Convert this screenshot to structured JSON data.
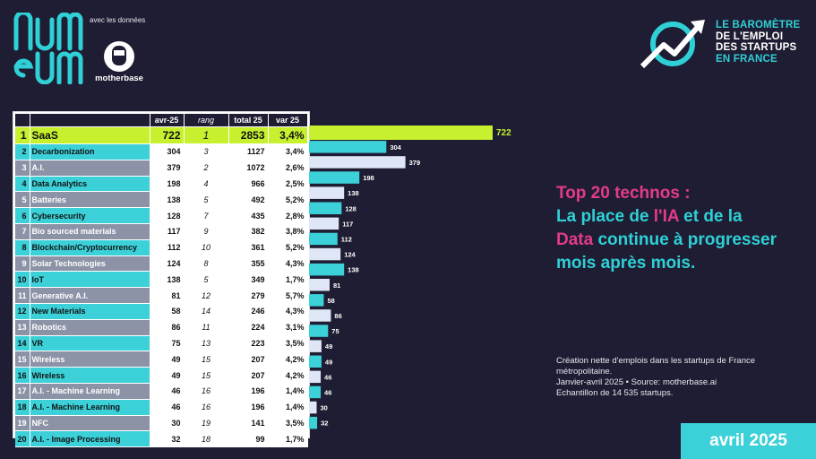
{
  "header": {
    "brand": "num eum",
    "avec": "avec les données",
    "partner": "motherbase",
    "barometre": [
      "LE BAROMÈTRE",
      "DE L'EMPLOI",
      "DES STARTUPS",
      "EN FRANCE"
    ]
  },
  "table": {
    "headers": {
      "col1": "avr-25",
      "col2": "rang",
      "col3": "total 25",
      "col4": "var 25"
    }
  },
  "chart_data": {
    "type": "bar",
    "categories": [
      "SaaS",
      "Decarbonization",
      "A.I.",
      "Data Analytics",
      "Batteries",
      "Cybersecurity",
      "Bio sourced materials",
      "Blockchain/Cryptocurrency",
      "Solar Technologies",
      "IoT",
      "Generative A.I.",
      "New Materials",
      "Robotics",
      "VR",
      "Wireless",
      "Wireless",
      "A.I. - Machine Learning",
      "A.I. - Machine Learning",
      "NFC",
      "A.I. - Image Processing"
    ],
    "rows": [
      {
        "n": "1",
        "name": "SaaS",
        "avr": "722",
        "rang": "1",
        "total": "2853",
        "var": "3,4%",
        "value": 722
      },
      {
        "n": "2",
        "name": "Decarbonization",
        "avr": "304",
        "rang": "3",
        "total": "1127",
        "var": "3,4%",
        "value": 304
      },
      {
        "n": "3",
        "name": "A.I.",
        "avr": "379",
        "rang": "2",
        "total": "1072",
        "var": "2,6%",
        "value": 379
      },
      {
        "n": "4",
        "name": "Data Analytics",
        "avr": "198",
        "rang": "4",
        "total": "966",
        "var": "2,5%",
        "value": 198
      },
      {
        "n": "5",
        "name": "Batteries",
        "avr": "138",
        "rang": "5",
        "total": "492",
        "var": "5,2%",
        "value": 138
      },
      {
        "n": "6",
        "name": "Cybersecurity",
        "avr": "128",
        "rang": "7",
        "total": "435",
        "var": "2,8%",
        "value": 128
      },
      {
        "n": "7",
        "name": "Bio sourced materials",
        "avr": "117",
        "rang": "9",
        "total": "382",
        "var": "3,8%",
        "value": 117
      },
      {
        "n": "8",
        "name": "Blockchain/Cryptocurrency",
        "avr": "112",
        "rang": "10",
        "total": "361",
        "var": "5,2%",
        "value": 112
      },
      {
        "n": "9",
        "name": "Solar Technologies",
        "avr": "124",
        "rang": "8",
        "total": "355",
        "var": "4,3%",
        "value": 124
      },
      {
        "n": "10",
        "name": "IoT",
        "avr": "138",
        "rang": "5",
        "total": "349",
        "var": "1,7%",
        "value": 138
      },
      {
        "n": "11",
        "name": "Generative A.I.",
        "avr": "81",
        "rang": "12",
        "total": "279",
        "var": "5,7%",
        "value": 81
      },
      {
        "n": "12",
        "name": "New Materials",
        "avr": "58",
        "rang": "14",
        "total": "246",
        "var": "4,3%",
        "value": 58
      },
      {
        "n": "13",
        "name": "Robotics",
        "avr": "86",
        "rang": "11",
        "total": "224",
        "var": "3,1%",
        "value": 86
      },
      {
        "n": "14",
        "name": "VR",
        "avr": "75",
        "rang": "13",
        "total": "223",
        "var": "3,5%",
        "value": 75
      },
      {
        "n": "15",
        "name": "Wireless",
        "avr": "49",
        "rang": "15",
        "total": "207",
        "var": "4,2%",
        "value": 49
      },
      {
        "n": "16",
        "name": "Wireless",
        "avr": "49",
        "rang": "15",
        "total": "207",
        "var": "4,2%",
        "value": 49
      },
      {
        "n": "17",
        "name": "A.I. - Machine Learning",
        "avr": "46",
        "rang": "16",
        "total": "196",
        "var": "1,4%",
        "value": 46
      },
      {
        "n": "18",
        "name": "A.I. - Machine Learning",
        "avr": "46",
        "rang": "16",
        "total": "196",
        "var": "1,4%",
        "value": 46
      },
      {
        "n": "19",
        "name": "NFC",
        "avr": "30",
        "rang": "19",
        "total": "141",
        "var": "3,5%",
        "value": 30
      },
      {
        "n": "20",
        "name": "A.I. - Image Processing",
        "avr": "32",
        "rang": "18",
        "total": "99",
        "var": "1,7%",
        "value": 32
      }
    ],
    "values": [
      722,
      304,
      379,
      198,
      138,
      128,
      117,
      112,
      124,
      138,
      81,
      58,
      86,
      75,
      49,
      49,
      46,
      46,
      30,
      32
    ],
    "xlim": [
      0,
      722
    ],
    "bar_colors": {
      "top": "#c7f02e",
      "cyan": "#3cd0d8",
      "light": "#dfe6f5"
    }
  },
  "headline": {
    "l1": "Top 20 technos :",
    "l2a": "La place de ",
    "l2b": "l'IA",
    "l2c": " et de la",
    "l3a": "Data",
    "l3b": " continue à progresser",
    "l4": "mois après mois."
  },
  "note": {
    "l1": "Création nette d'emplois dans les startups de France",
    "l2": "métropolitaine.",
    "l3": "Janvier-avril 2025 • Source: motherbase.ai",
    "l4": "Echantillon de 14 535 startups."
  },
  "footer": {
    "date": "avril 2025"
  },
  "colors": {
    "bg": "#1f1d33",
    "cyan": "#3cd0d8",
    "pink": "#e33b8c",
    "lime": "#c7f02e"
  }
}
